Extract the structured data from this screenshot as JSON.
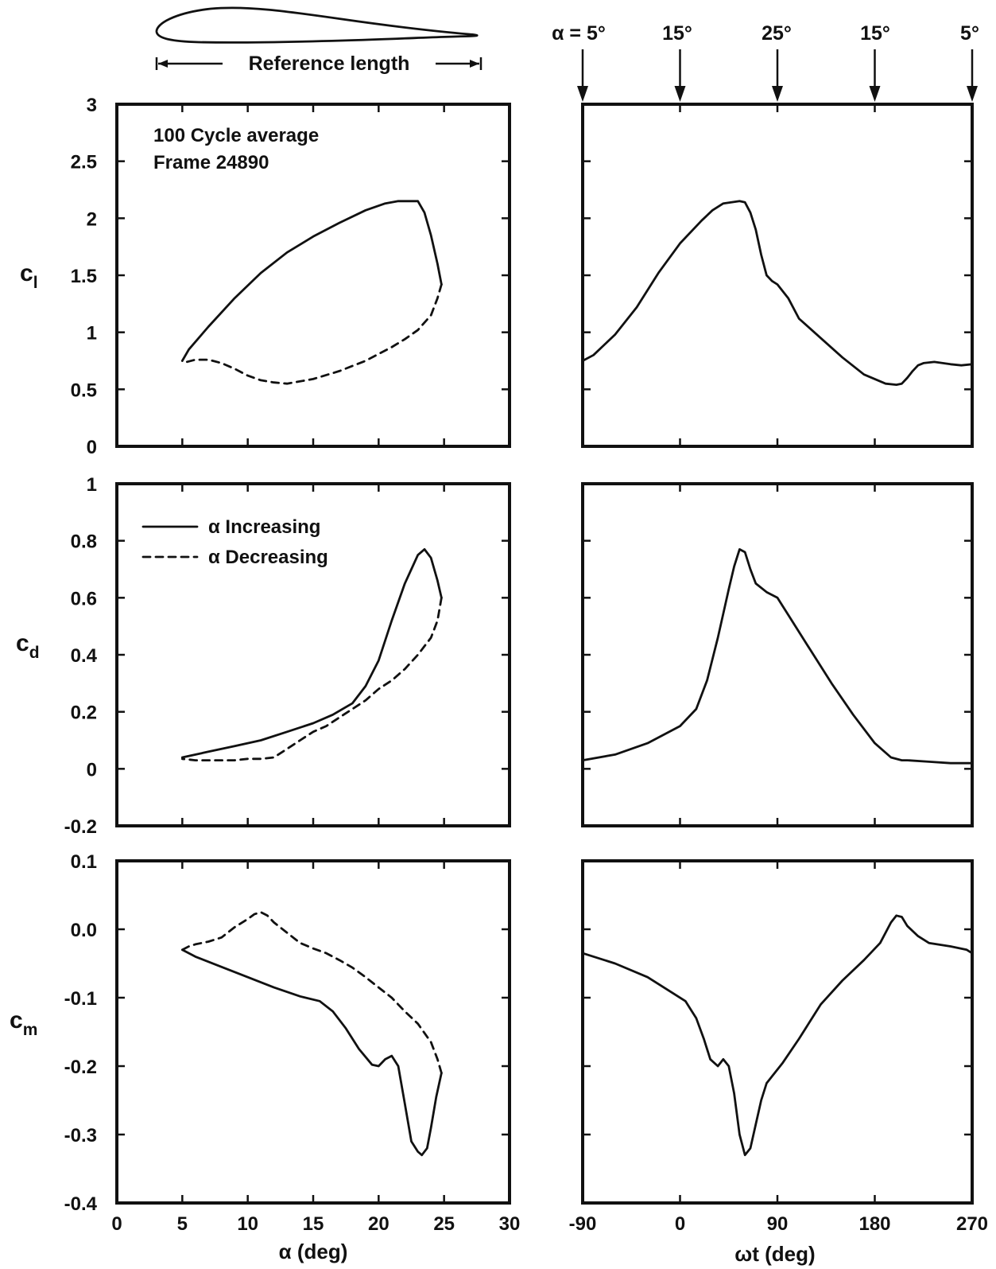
{
  "header": {
    "reference_label": "Reference length",
    "alpha_marks": [
      "α = 5°",
      "15°",
      "25°",
      "15°",
      "5°"
    ]
  },
  "annotations": {
    "cycle_line1": "100 Cycle average",
    "cycle_line2": "Frame 24890"
  },
  "legend": {
    "increasing": "α Increasing",
    "decreasing": "α Decreasing"
  },
  "axes": {
    "left_xlabel": "α (deg)",
    "right_xlabel": "ωt (deg)",
    "cl_label": "c",
    "cl_sub": "l",
    "cd_label": "c",
    "cd_sub": "d",
    "cm_label": "c",
    "cm_sub": "m",
    "left_xticks": [
      "0",
      "5",
      "10",
      "15",
      "20",
      "25",
      "30"
    ],
    "right_xticks": [
      "-90",
      "0",
      "90",
      "180",
      "270"
    ],
    "cl_yticks": [
      "0",
      "0.5",
      "1",
      "1.5",
      "2",
      "2.5",
      "3"
    ],
    "cd_yticks": [
      "-0.2",
      "0",
      "0.2",
      "0.4",
      "0.6",
      "0.8",
      "1"
    ],
    "cm_yticks": [
      "-0.4",
      "-0.3",
      "-0.2",
      "-0.1",
      "0.0",
      "0.1"
    ]
  },
  "chart_data": [
    {
      "type": "line",
      "panel": "cl-vs-alpha",
      "xlabel": "α (deg)",
      "ylabel": "cl",
      "xlim": [
        0,
        30
      ],
      "ylim": [
        0,
        3
      ],
      "series": [
        {
          "name": "α Increasing",
          "style": "solid",
          "x": [
            5,
            5.5,
            7,
            9,
            11,
            13,
            15,
            17,
            19,
            20.5,
            21.5,
            22.5,
            23,
            23.5,
            24,
            24.5,
            24.8
          ],
          "y": [
            0.75,
            0.85,
            1.05,
            1.3,
            1.52,
            1.7,
            1.84,
            1.96,
            2.07,
            2.13,
            2.15,
            2.15,
            2.15,
            2.05,
            1.85,
            1.6,
            1.42
          ]
        },
        {
          "name": "α Decreasing",
          "style": "dashed",
          "x": [
            24.8,
            24.5,
            24,
            23,
            22,
            21,
            20,
            19,
            17,
            15,
            13,
            12,
            11,
            10,
            9,
            8,
            7,
            6,
            5
          ],
          "y": [
            1.42,
            1.3,
            1.15,
            1.02,
            0.94,
            0.87,
            0.81,
            0.75,
            0.66,
            0.59,
            0.55,
            0.56,
            0.58,
            0.62,
            0.68,
            0.73,
            0.76,
            0.76,
            0.73
          ]
        }
      ]
    },
    {
      "type": "line",
      "panel": "cl-vs-omega-t",
      "xlabel": "ωt (deg)",
      "ylabel": "cl",
      "xlim": [
        -90,
        270
      ],
      "ylim": [
        0,
        3
      ],
      "series": [
        {
          "name": "",
          "style": "solid",
          "x": [
            -90,
            -80,
            -60,
            -40,
            -20,
            0,
            20,
            30,
            40,
            55,
            60,
            65,
            70,
            75,
            80,
            85,
            90,
            100,
            110,
            130,
            150,
            170,
            190,
            200,
            205,
            210,
            215,
            220,
            225,
            235,
            250,
            260,
            270
          ],
          "y": [
            0.75,
            0.8,
            0.98,
            1.22,
            1.52,
            1.78,
            1.98,
            2.07,
            2.13,
            2.15,
            2.14,
            2.05,
            1.9,
            1.68,
            1.5,
            1.45,
            1.42,
            1.3,
            1.12,
            0.95,
            0.78,
            0.63,
            0.55,
            0.54,
            0.55,
            0.6,
            0.66,
            0.71,
            0.73,
            0.74,
            0.72,
            0.71,
            0.72
          ]
        }
      ]
    },
    {
      "type": "line",
      "panel": "cd-vs-alpha",
      "xlabel": "α (deg)",
      "ylabel": "cd",
      "xlim": [
        0,
        30
      ],
      "ylim": [
        -0.2,
        1
      ],
      "series": [
        {
          "name": "α Increasing",
          "style": "solid",
          "x": [
            5,
            7,
            9,
            11,
            13,
            15,
            16.5,
            18,
            19,
            20,
            21,
            22,
            22.5,
            23,
            23.5,
            24,
            24.5,
            24.8
          ],
          "y": [
            0.04,
            0.06,
            0.08,
            0.1,
            0.13,
            0.16,
            0.19,
            0.23,
            0.29,
            0.38,
            0.52,
            0.65,
            0.7,
            0.75,
            0.77,
            0.74,
            0.66,
            0.6
          ]
        },
        {
          "name": "α Decreasing",
          "style": "dashed",
          "x": [
            24.8,
            24.5,
            24,
            23,
            22,
            21,
            20,
            19,
            18,
            17,
            16,
            15,
            14,
            13,
            12,
            11,
            10,
            9,
            8,
            7,
            6,
            5
          ],
          "y": [
            0.6,
            0.52,
            0.46,
            0.4,
            0.35,
            0.31,
            0.28,
            0.24,
            0.21,
            0.18,
            0.15,
            0.13,
            0.1,
            0.07,
            0.04,
            0.035,
            0.035,
            0.03,
            0.03,
            0.03,
            0.03,
            0.035
          ]
        }
      ]
    },
    {
      "type": "line",
      "panel": "cd-vs-omega-t",
      "xlabel": "ωt (deg)",
      "ylabel": "cd",
      "xlim": [
        -90,
        270
      ],
      "ylim": [
        -0.2,
        1
      ],
      "series": [
        {
          "name": "",
          "style": "solid",
          "x": [
            -90,
            -60,
            -30,
            0,
            15,
            25,
            35,
            45,
            50,
            55,
            60,
            65,
            70,
            80,
            90,
            100,
            120,
            140,
            160,
            180,
            195,
            205,
            210,
            230,
            250,
            270
          ],
          "y": [
            0.03,
            0.05,
            0.09,
            0.15,
            0.21,
            0.31,
            0.46,
            0.63,
            0.71,
            0.77,
            0.76,
            0.7,
            0.65,
            0.62,
            0.6,
            0.54,
            0.42,
            0.3,
            0.19,
            0.09,
            0.04,
            0.03,
            0.03,
            0.025,
            0.02,
            0.02
          ]
        }
      ]
    },
    {
      "type": "line",
      "panel": "cm-vs-alpha",
      "xlabel": "α (deg)",
      "ylabel": "cm",
      "xlim": [
        0,
        30
      ],
      "ylim": [
        -0.4,
        0.1
      ],
      "series": [
        {
          "name": "α Increasing",
          "style": "solid",
          "x": [
            5,
            6,
            8,
            10,
            12,
            14,
            15.5,
            16.5,
            17.5,
            18.5,
            19.5,
            20,
            20.5,
            21,
            21.5,
            22,
            22.5,
            23,
            23.3,
            23.7,
            24,
            24.4,
            24.8
          ],
          "y": [
            -0.03,
            -0.04,
            -0.055,
            -0.07,
            -0.085,
            -0.098,
            -0.105,
            -0.12,
            -0.145,
            -0.175,
            -0.198,
            -0.2,
            -0.19,
            -0.185,
            -0.2,
            -0.255,
            -0.31,
            -0.325,
            -0.33,
            -0.32,
            -0.29,
            -0.245,
            -0.21
          ]
        },
        {
          "name": "α Decreasing",
          "style": "dashed",
          "x": [
            24.8,
            24.5,
            24,
            23,
            22,
            21,
            20,
            19,
            18,
            17,
            16,
            15,
            14,
            13,
            12,
            11.5,
            11,
            10.5,
            10,
            9,
            8,
            7,
            6,
            5.5,
            5
          ],
          "y": [
            -0.21,
            -0.19,
            -0.165,
            -0.138,
            -0.12,
            -0.1,
            -0.085,
            -0.07,
            -0.056,
            -0.045,
            -0.035,
            -0.028,
            -0.02,
            -0.005,
            0.01,
            0.02,
            0.025,
            0.022,
            0.015,
            0.003,
            -0.012,
            -0.018,
            -0.022,
            -0.025,
            -0.03
          ]
        }
      ]
    },
    {
      "type": "line",
      "panel": "cm-vs-omega-t",
      "xlabel": "ωt (deg)",
      "ylabel": "cm",
      "xlim": [
        -90,
        270
      ],
      "ylim": [
        -0.4,
        0.1
      ],
      "series": [
        {
          "name": "",
          "style": "solid",
          "x": [
            -90,
            -60,
            -30,
            -5,
            5,
            15,
            22,
            28,
            35,
            40,
            45,
            50,
            55,
            60,
            65,
            70,
            75,
            80,
            85,
            95,
            110,
            130,
            150,
            170,
            185,
            195,
            200,
            205,
            210,
            220,
            230,
            250,
            265,
            270
          ],
          "y": [
            -0.035,
            -0.05,
            -0.07,
            -0.095,
            -0.105,
            -0.13,
            -0.16,
            -0.19,
            -0.2,
            -0.19,
            -0.2,
            -0.24,
            -0.3,
            -0.33,
            -0.32,
            -0.285,
            -0.25,
            -0.225,
            -0.215,
            -0.195,
            -0.16,
            -0.11,
            -0.075,
            -0.045,
            -0.02,
            0.01,
            0.02,
            0.018,
            0.005,
            -0.01,
            -0.02,
            -0.025,
            -0.03,
            -0.035
          ]
        }
      ]
    }
  ]
}
